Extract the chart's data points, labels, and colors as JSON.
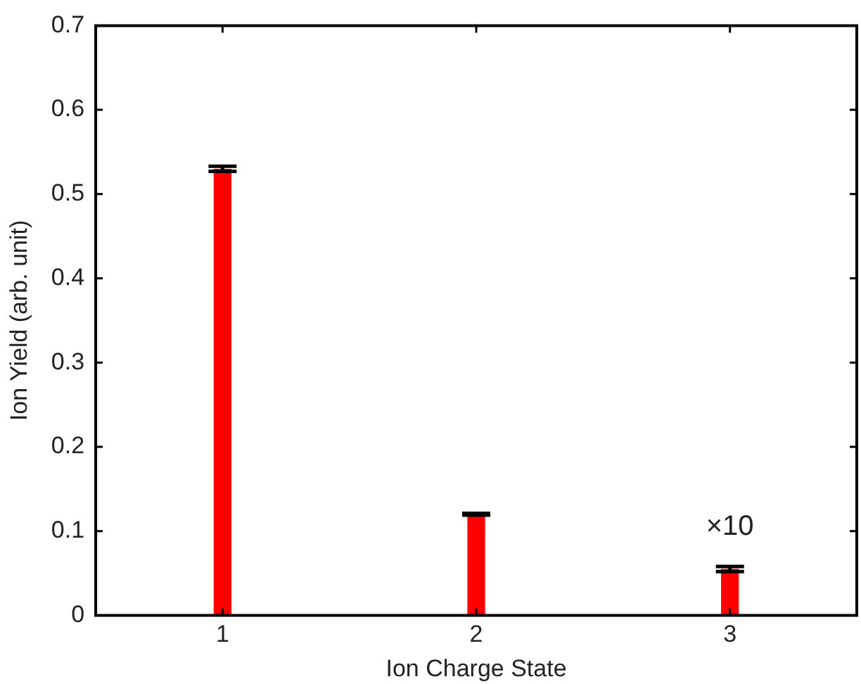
{
  "chart_data": {
    "type": "bar",
    "xlabel": "Ion Charge State",
    "ylabel": "Ion Yield (arb. unit)",
    "categories": [
      "1",
      "2",
      "3"
    ],
    "values": [
      0.53,
      0.12,
      0.055
    ],
    "errors": [
      0.003,
      0.001,
      0.003
    ],
    "color": "#ff0000",
    "ylim": [
      0,
      0.7
    ],
    "yticks": [
      0,
      0.1,
      0.2,
      0.3,
      0.4,
      0.5,
      0.6,
      0.7
    ],
    "grid": false,
    "legend": false,
    "annotations": [
      "×10"
    ]
  }
}
